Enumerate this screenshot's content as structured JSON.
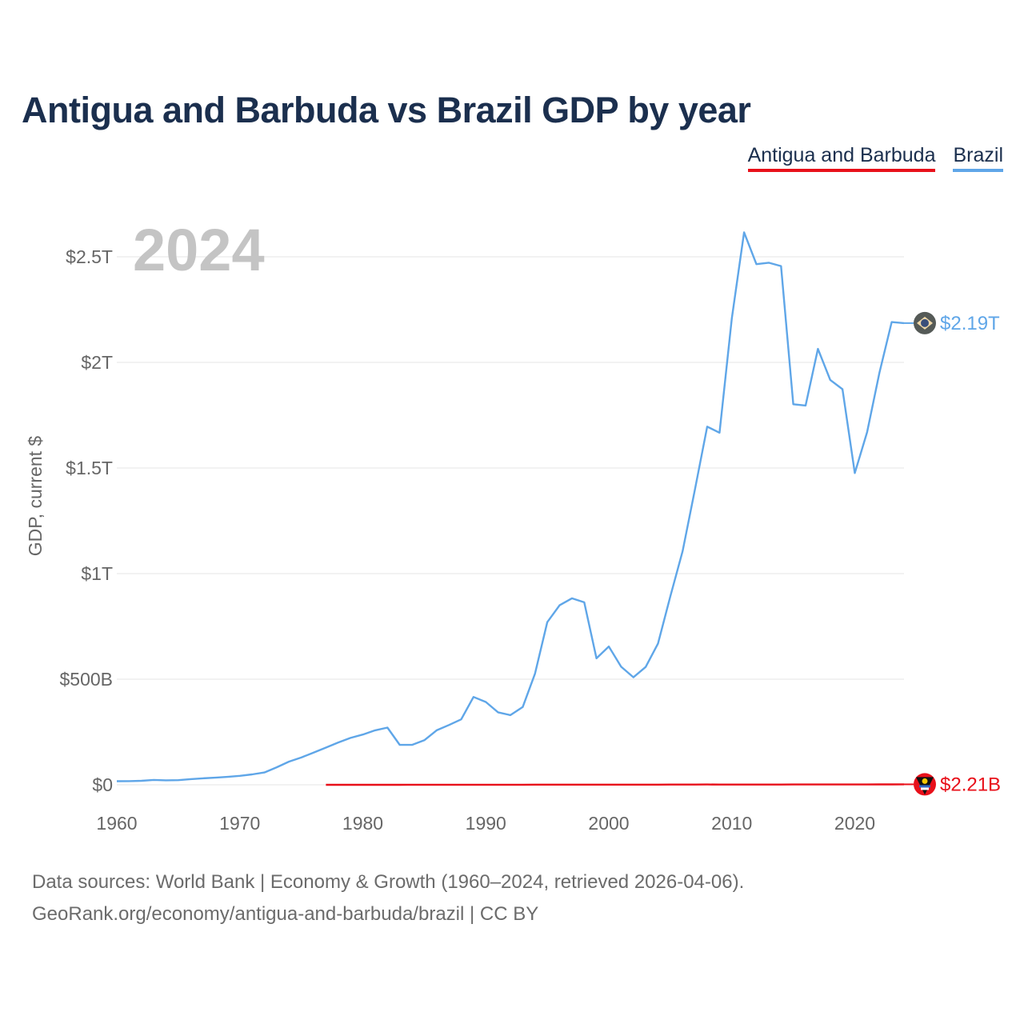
{
  "title": "Antigua and Barbuda vs Brazil GDP by year",
  "legend": {
    "antigua": "Antigua and Barbuda",
    "brazil": "Brazil"
  },
  "year_label": "2024",
  "colors": {
    "antigua": "#e8101a",
    "brazil": "#5fa6e8",
    "title": "#1b2f4e",
    "axis_text": "#666666",
    "year": "#c4c4c4",
    "grid": "#e6e6e6"
  },
  "footer": {
    "line1": "Data sources: World Bank | Economy & Growth (1960–2024, retrieved 2026-04-06).",
    "line2": "GeoRank.org/economy/antigua-and-barbuda/brazil | CC BY"
  },
  "chart_data": {
    "type": "line",
    "title": "Antigua and Barbuda vs Brazil GDP by year",
    "xlabel": "",
    "ylabel": "GDP, current $",
    "xlim": [
      1960,
      2024
    ],
    "ylim": [
      0,
      2750000000000
    ],
    "x_ticks": [
      1960,
      1970,
      1980,
      1990,
      2000,
      2010,
      2020
    ],
    "y_ticks": [
      {
        "value": 0,
        "label": "$0"
      },
      {
        "value": 500000000000,
        "label": "$500B"
      },
      {
        "value": 1000000000000,
        "label": "$1T"
      },
      {
        "value": 1500000000000,
        "label": "$1.5T"
      },
      {
        "value": 2000000000000,
        "label": "$2T"
      },
      {
        "value": 2500000000000,
        "label": "$2.5T"
      }
    ],
    "grid": true,
    "legend_position": "top-right",
    "series": [
      {
        "name": "Brazil",
        "color": "#5fa6e8",
        "end_label": "$2.19T",
        "x": [
          1960,
          1961,
          1962,
          1963,
          1964,
          1965,
          1966,
          1967,
          1968,
          1969,
          1970,
          1971,
          1972,
          1973,
          1974,
          1975,
          1976,
          1977,
          1978,
          1979,
          1980,
          1981,
          1982,
          1983,
          1984,
          1985,
          1986,
          1987,
          1988,
          1989,
          1990,
          1991,
          1992,
          1993,
          1994,
          1995,
          1996,
          1997,
          1998,
          1999,
          2000,
          2001,
          2002,
          2003,
          2004,
          2005,
          2006,
          2007,
          2008,
          2009,
          2010,
          2011,
          2012,
          2013,
          2014,
          2015,
          2016,
          2017,
          2018,
          2019,
          2020,
          2021,
          2022,
          2023,
          2024
        ],
        "values": [
          17000000000,
          17600000000,
          19000000000,
          23000000000,
          21200000000,
          22000000000,
          27000000000,
          30600000000,
          33900000000,
          37500000000,
          42300000000,
          49200000000,
          58500000000,
          83000000000,
          109800000000,
          129000000000,
          152700000000,
          176300000000,
          200500000000,
          221800000000,
          237800000000,
          258000000000,
          271000000000,
          189500000000,
          189000000000,
          211000000000,
          258000000000,
          283000000000,
          310000000000,
          416000000000,
          392000000000,
          343000000000,
          330000000000,
          368000000000,
          527000000000,
          770000000000,
          850000000000,
          883000000000,
          864000000000,
          599000000000,
          655000000000,
          559000000000,
          509000000000,
          558000000000,
          669000000000,
          892000000000,
          1107000000000,
          1397000000000,
          1696000000000,
          1667000000000,
          2209000000000,
          2616000000000,
          2465000000000,
          2472000000000,
          2456000000000,
          1802000000000,
          1796000000000,
          2064000000000,
          1917000000000,
          1873000000000,
          1476000000000,
          1670000000000,
          1951000000000,
          2191000000000,
          2186000000000
        ]
      },
      {
        "name": "Antigua and Barbuda",
        "color": "#e8101a",
        "end_label": "$2.21B",
        "x": [
          1977,
          1978,
          1979,
          1980,
          1981,
          1982,
          1983,
          1984,
          1985,
          1986,
          1987,
          1988,
          1989,
          1990,
          1991,
          1992,
          1993,
          1994,
          1995,
          1996,
          1997,
          1998,
          1999,
          2000,
          2001,
          2002,
          2003,
          2004,
          2005,
          2006,
          2007,
          2008,
          2009,
          2010,
          2011,
          2012,
          2013,
          2014,
          2015,
          2016,
          2017,
          2018,
          2019,
          2020,
          2021,
          2022,
          2023,
          2024
        ],
        "values": [
          77000000,
          90000000,
          104000000,
          131000000,
          148000000,
          164000000,
          182000000,
          208000000,
          240000000,
          290000000,
          337000000,
          398000000,
          438000000,
          459000000,
          481000000,
          499000000,
          535000000,
          589000000,
          577000000,
          634000000,
          681000000,
          728000000,
          766000000,
          830000000,
          800000000,
          814000000,
          856000000,
          919000000,
          1022000000,
          1157000000,
          1312000000,
          1368000000,
          1225000000,
          1149000000,
          1138000000,
          1199000000,
          1181000000,
          1250000000,
          1337000000,
          1437000000,
          1468000000,
          1605000000,
          1688000000,
          1413000000,
          1560000000,
          1780000000,
          2030000000,
          2210000000
        ]
      }
    ]
  }
}
